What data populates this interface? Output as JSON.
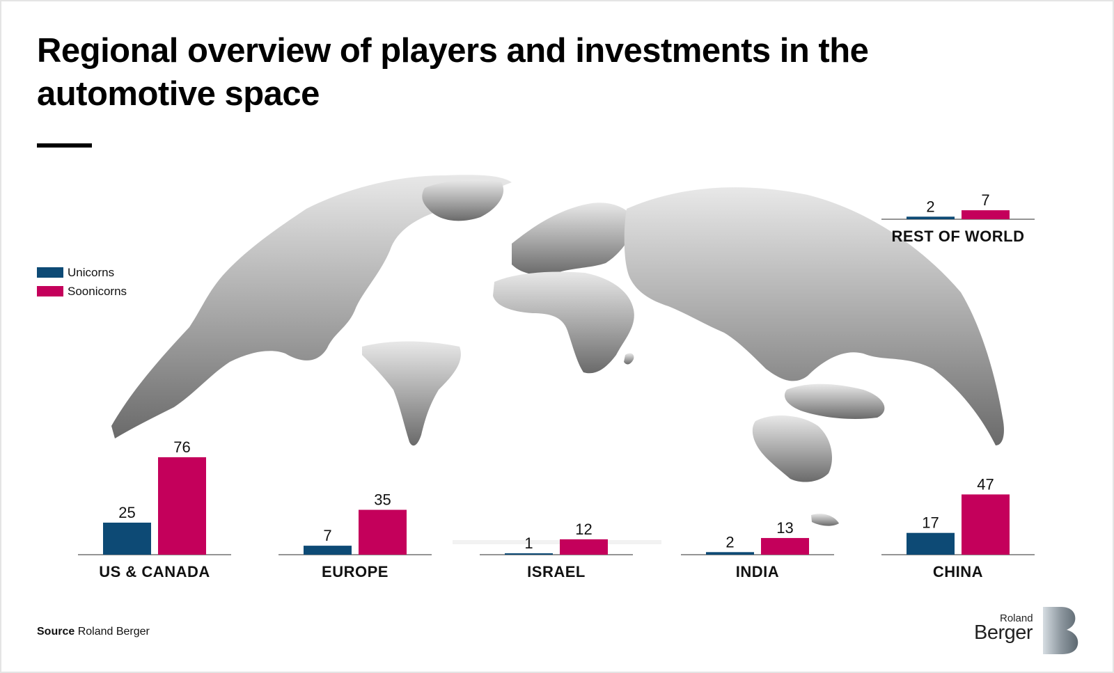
{
  "title": "Regional overview of players and investments in the automotive space",
  "legend": [
    {
      "label": "Unicorns",
      "color": "#0d4a75"
    },
    {
      "label": "Soonicorns",
      "color": "#c4005b"
    }
  ],
  "source": {
    "label": "Source",
    "text": "Roland Berger"
  },
  "logo": {
    "top": "Roland",
    "main": "Berger"
  },
  "chart_data": {
    "type": "bar",
    "title": "Regional overview of players and investments in the automotive space",
    "categories": [
      "US & CANADA",
      "EUROPE",
      "ISRAEL",
      "INDIA",
      "CHINA",
      "REST OF WORLD"
    ],
    "series": [
      {
        "name": "Unicorns",
        "color": "#0d4a75",
        "values": [
          25,
          7,
          1,
          2,
          17,
          2
        ]
      },
      {
        "name": "Soonicorns",
        "color": "#c4005b",
        "values": [
          76,
          35,
          12,
          13,
          47,
          7
        ]
      }
    ],
    "ylim": [
      0,
      76
    ],
    "grid": false,
    "legend_position": "left",
    "background": "world map"
  }
}
